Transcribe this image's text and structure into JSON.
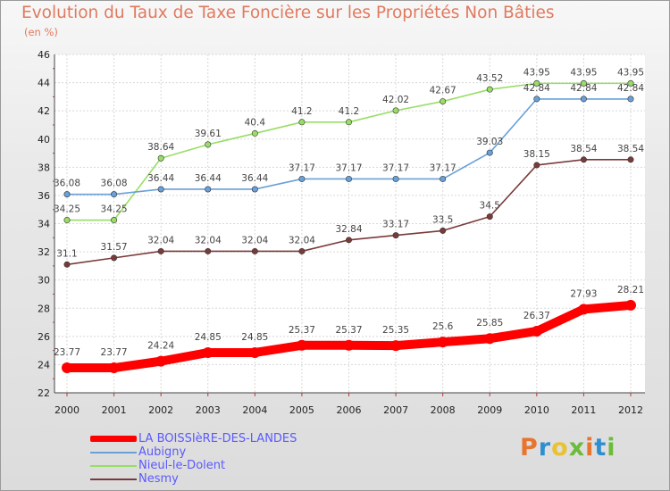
{
  "title": "Evolution du Taux de Taxe Foncière sur les Propriétés Non Bâties",
  "unit": "(en %)",
  "logo": {
    "text": "Proxiti",
    "colors": [
      "#e8752f",
      "#2e8fd0",
      "#e8c22f",
      "#6dbb3a",
      "#e8752f",
      "#2e8fd0",
      "#6dbb3a"
    ]
  },
  "chart_data": {
    "type": "line",
    "x": [
      "2000",
      "2001",
      "2002",
      "2003",
      "2004",
      "2005",
      "2006",
      "2007",
      "2008",
      "2009",
      "2010",
      "2011",
      "2012"
    ],
    "ylim": [
      22,
      46
    ],
    "yticks": [
      "22",
      "24",
      "26",
      "28",
      "30",
      "32",
      "34",
      "36",
      "38",
      "40",
      "42",
      "44",
      "46"
    ],
    "grid": true,
    "legend_position": "bottom-left",
    "series": [
      {
        "name": "LA BOISSIèRE-DES-LANDES",
        "color": "#ff0000",
        "values": [
          23.77,
          23.77,
          24.24,
          24.85,
          24.85,
          25.37,
          25.37,
          25.35,
          25.6,
          25.85,
          26.37,
          27.93,
          28.21
        ],
        "labels": [
          "23.77",
          "23.77",
          "24.24",
          "24.85",
          "24.85",
          "25.37",
          "25.37",
          "25.35",
          "25.6",
          "25.85",
          "26.37",
          "27.93",
          "28.21"
        ]
      },
      {
        "name": "Aubigny",
        "color": "#6aa0d8",
        "values": [
          36.08,
          36.08,
          36.44,
          36.44,
          36.44,
          37.17,
          37.17,
          37.17,
          37.17,
          39.03,
          42.84,
          42.84,
          42.84
        ],
        "labels": [
          "36.08",
          "36.08",
          "36.44",
          "36.44",
          "36.44",
          "37.17",
          "37.17",
          "37.17",
          "37.17",
          "39.03",
          "42.84",
          "42.84",
          "42.84"
        ]
      },
      {
        "name": "Nieul-le-Dolent",
        "color": "#99dd66",
        "values": [
          34.25,
          34.25,
          38.64,
          39.61,
          40.4,
          41.2,
          41.2,
          42.02,
          42.67,
          43.52,
          43.95,
          43.95,
          43.95
        ],
        "labels": [
          "34.25",
          "34.25",
          "38.64",
          "39.61",
          "40.4",
          "41.2",
          "41.2",
          "42.02",
          "42.67",
          "43.52",
          "43.95",
          "43.95",
          "43.95"
        ]
      },
      {
        "name": "Nesmy",
        "color": "#7a3a3a",
        "values": [
          31.1,
          31.57,
          32.04,
          32.04,
          32.04,
          32.04,
          32.84,
          33.17,
          33.5,
          34.5,
          38.15,
          38.54,
          38.54
        ],
        "labels": [
          "31.1",
          "31.57",
          "32.04",
          "32.04",
          "32.04",
          "32.04",
          "32.84",
          "33.17",
          "33.5",
          "34.5",
          "38.15",
          "38.54",
          "38.54"
        ]
      }
    ]
  }
}
